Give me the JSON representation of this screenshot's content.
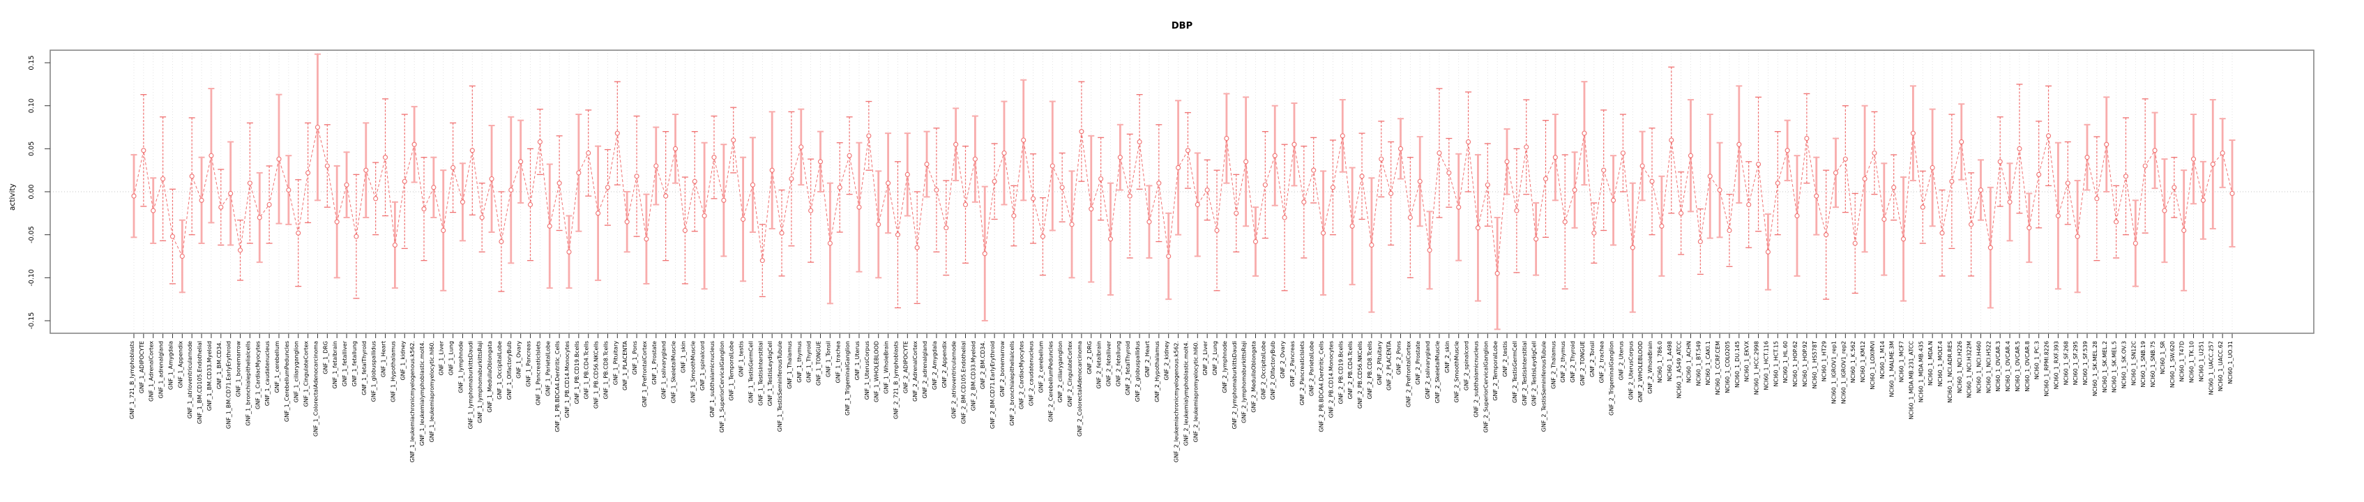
{
  "title": "DBP",
  "colors": {
    "point_line": "#f07070",
    "bar_solid_pink": "#f8acac",
    "bar_dashed_red": "#f07070",
    "marker_fill": "#ffffff",
    "grid": "#dcdcdc",
    "zero_line": "#c4c4c4",
    "axis_frame": "#878787",
    "tick": "#333333",
    "text": "#000000"
  },
  "chart_data": {
    "type": "line",
    "title": "DBP",
    "xlabel": "",
    "ylabel": "activity",
    "ylim": [
      -0.165,
      0.165
    ],
    "ytick_values": [
      0.15,
      0.1,
      0.05,
      0.0,
      -0.05,
      -0.1,
      -0.15
    ],
    "ytick_labels": [
      "0.15",
      "0.10",
      "0.05",
      "0.00",
      "-0.05",
      "-0.10",
      "-0.15"
    ],
    "grid": "dotted vertical line at every sample; dotted horizontal line at y=0",
    "legend_position": "none",
    "marker": "open-circle",
    "line_style": "dashed",
    "error_bar_note": "whiskers with end caps; style 0 = thick solid pink, style 1 = thin dashed red",
    "groups": [
      {
        "prefix": "GNF_1_",
        "items": [
          "721_B_lymphoblasts",
          "ADIPOCYTE",
          "AdrenalCortex",
          "adrenalgland",
          "Amygdala",
          "Appendix",
          "atrioventricularnode",
          "BM.CD105.Endothelial",
          "BM.CD33.Myeloid",
          "BM.CD34.",
          "BM.CD71.EarlyErythroid",
          "bonemarrow",
          "bronchialepithelialcells",
          "CardiacMyocytes",
          "caudatenucleus",
          "cerebellum",
          "CerebellumPeduncles",
          "ciliaryganglion",
          "CingulateCortex",
          "ColorectalAdenocarcinoma",
          "DRG",
          "fetalbrain",
          "fetalliver",
          "fetallung",
          "fetalThyroid",
          "globuspallidus",
          "Heart",
          "Hypothalamus",
          "kidney",
          "leukemiachronicmyelogenous.k562.",
          "leukemialymphoblastic.molt4.",
          "leukemiapromyelocytic.hl60.",
          "Liver",
          "Lung",
          "lymphnode",
          "lymphomaburkittsDaudi",
          "lymphomaburkittsRaji",
          "MedullaOblongata",
          "OccipitalLobe",
          "OlfactoryBulb",
          "Ovary",
          "Pancreas",
          "PancreaticIslets",
          "ParietalLobe",
          "PB.BDCA4.Dentritic_Cells",
          "PB.CD14.Monocytes",
          "PB.CD19.Bcells",
          "PB.CD4.Tcells",
          "PB.CD56.NKCells",
          "PB.CD8.Tcells",
          "Pituitary",
          "PLACENTA",
          "Pons",
          "PrefrontalCortex",
          "Prostate",
          "salivarygland",
          "SkeletalMuscle",
          "skin",
          "SmoothMuscle",
          "spinalcord",
          "subthalamicnucleus",
          "SuperiorCervicalGanglion",
          "TemporalLobe",
          "testis",
          "TestisGermCell",
          "TestisInterstitial",
          "TestisLeydigCell",
          "TestisSeminiferousTubule",
          "Thalamus",
          "thymus",
          "Thyroid",
          "TONGUE",
          "Tonsil",
          "trachea",
          "TrigeminalGanglion",
          "Uterus",
          "UterusCorpus",
          "WHOLEBLOOD",
          "WholeBrain"
        ]
      },
      {
        "prefix": "GNF_2_",
        "items": [
          "721_B_lymphoblasts",
          "ADIPOCYTE",
          "AdrenalCortex",
          "adrenalgland",
          "Amygdala",
          "Appendix",
          "atrioventricularnode",
          "BM.CD105.Endothelial",
          "BM.CD33.Myeloid",
          "BM.CD34.",
          "BM.CD71.EarlyErythroid",
          "bonemarrow",
          "bronchialepithelialcells",
          "CardiacMyocytes",
          "caudatenucleus",
          "cerebellum",
          "CerebellumPeduncles",
          "ciliaryganglion",
          "CingulateCortex",
          "ColorectalAdenocarcinoma",
          "DRG",
          "fetalbrain",
          "fetalliver",
          "fetallung",
          "fetalThyroid",
          "globuspallidus",
          "Heart",
          "Hypothalamus",
          "kidney",
          "leukemiachronicmyelogenous.k562.",
          "leukemialymphoblastic.molt4.",
          "leukemiapromyelocytic.hl60.",
          "Liver",
          "Lung",
          "lymphnode",
          "lymphomaburkittsDaudi",
          "lymphomaburkittsRaji",
          "MedullaOblongata",
          "OccipitalLobe",
          "OlfactoryBulb",
          "Ovary",
          "Pancreas",
          "PancreaticIslets",
          "ParietalLobe",
          "PB.BDCA4.Dentritic_Cells",
          "PB.CD14.Monocytes",
          "PB.CD19.Bcells",
          "PB.CD4.Tcells",
          "PB.CD56.NKCells",
          "PB.CD8.Tcells",
          "Pituitary",
          "PLACENTA",
          "Pons",
          "PrefrontalCortex",
          "Prostate",
          "salivarygland",
          "SkeletalMuscle",
          "skin",
          "SmoothMuscle",
          "spinalcord",
          "subthalamicnucleus",
          "SuperiorCervicalGanglion",
          "TemporalLobe",
          "testis",
          "TestisGermCell",
          "TestisInterstitial",
          "TestisLeydigCell",
          "TestisSeminiferousTubule",
          "Thalamus",
          "thymus",
          "Thyroid",
          "TONGUE",
          "Tonsil",
          "trachea",
          "TrigeminalGanglion",
          "Uterus",
          "UterusCorpus",
          "WHOLEBLOOD",
          "WholeBrain"
        ]
      },
      {
        "prefix": "NCI60_1_",
        "items": [
          "786.0",
          "A498",
          "A549_ATCC",
          "ACHN",
          "BT.549",
          "CAKI.1",
          "CCRF.CEM",
          "COLO205",
          "DU.145",
          "EKVX",
          "HCC.2998",
          "HCT.116",
          "HCT.15",
          "HL.60",
          "HOP.62",
          "HOP.92",
          "HS578T",
          "HT29",
          "IGROV1_rep1",
          "IGROV1_rep2",
          "K.562",
          "KM12",
          "LOXIMVI",
          "M14",
          "MALME.3M",
          "MCF7",
          "MDA.MB.231_ATCC",
          "MDA.MB.435",
          "MDA.N",
          "MOLT.4",
          "NCI.ADR.RES",
          "NCI.H226",
          "NCI.H322M",
          "NCI.H460",
          "NCI.H522",
          "OVCAR.3",
          "OVCAR.4",
          "OVCAR.5",
          "OVCAR.8",
          "PC.3",
          "RPMI.8226",
          "RXF.393",
          "SF.268",
          "SF.295",
          "SF.539",
          "SK.MEL.28",
          "SK.MEL.2",
          "SK.MEL.5",
          "SK.OV.3",
          "SN12C",
          "SNB.19",
          "SNB.75",
          "SR",
          "SW.620",
          "T47D",
          "TK.10",
          "U251",
          "UACC.257",
          "UACC.62",
          "UO.31"
        ]
      }
    ],
    "values": [
      -0.005,
      0.048,
      -0.022,
      0.015,
      -0.052,
      -0.075,
      0.018,
      -0.01,
      0.042,
      -0.018,
      -0.002,
      -0.068,
      0.01,
      -0.03,
      -0.015,
      0.038,
      0.002,
      -0.048,
      0.022,
      0.075,
      0.03,
      -0.035,
      0.008,
      -0.052,
      0.025,
      -0.008,
      0.04,
      -0.062,
      0.012,
      0.055,
      -0.02,
      0.005,
      -0.045,
      0.028,
      -0.012,
      0.048,
      -0.03,
      0.015,
      -0.058,
      0.002,
      0.035,
      -0.015,
      0.058,
      -0.04,
      0.01,
      -0.07,
      0.022,
      0.045,
      -0.025,
      0.005,
      0.068,
      -0.035,
      0.018,
      -0.055,
      0.03,
      -0.005,
      0.05,
      -0.045,
      0.012,
      -0.028,
      0.04,
      -0.01,
      0.06,
      -0.032,
      0.008,
      -0.08,
      0.025,
      -0.048,
      0.015,
      0.052,
      -0.022,
      0.035,
      -0.06,
      0.005,
      0.042,
      -0.018,
      0.065,
      -0.038,
      0.01,
      -0.05,
      0.02,
      -0.065,
      0.032,
      0.002,
      -0.042,
      0.055,
      -0.015,
      0.038,
      -0.072,
      0.012,
      0.045,
      -0.028,
      0.06,
      -0.008,
      -0.052,
      0.03,
      0.005,
      -0.038,
      0.07,
      -0.02,
      0.015,
      -0.055,
      0.04,
      -0.005,
      0.058,
      -0.035,
      0.01,
      -0.075,
      0.028,
      0.048,
      -0.015,
      0.002,
      -0.045,
      0.062,
      -0.025,
      0.035,
      -0.058,
      0.008,
      0.042,
      -0.03,
      0.055,
      -0.012,
      0.025,
      -0.048,
      0.005,
      0.065,
      -0.04,
      0.018,
      -0.062,
      0.038,
      -0.002,
      0.05,
      -0.03,
      0.012,
      -0.068,
      0.045,
      0.022,
      -0.018,
      0.058,
      -0.042,
      0.008,
      -0.095,
      0.035,
      -0.022,
      0.052,
      -0.055,
      0.015,
      0.04,
      -0.035,
      0.002,
      0.068,
      -0.048,
      0.025,
      -0.01,
      0.045,
      -0.065,
      0.03,
      0.012,
      -0.04,
      0.06,
      -0.025,
      0.042,
      -0.058,
      0.018,
      0.002,
      -0.045,
      0.055,
      -0.015,
      0.032,
      -0.07,
      0.01,
      0.048,
      -0.028,
      0.062,
      -0.005,
      -0.05,
      0.022,
      0.038,
      -0.06,
      0.015,
      0.045,
      -0.032,
      0.005,
      -0.055,
      0.068,
      -0.018,
      0.028,
      -0.048,
      0.012,
      0.058,
      -0.038,
      0.002,
      -0.065,
      0.035,
      -0.012,
      0.05,
      -0.042,
      0.02,
      0.065,
      -0.028,
      0.01,
      -0.052,
      0.04,
      -0.008,
      0.055,
      -0.035,
      0.018,
      -0.06,
      0.03,
      0.048,
      -0.022,
      0.005,
      -0.045,
      0.038,
      -0.01,
      0.032,
      0.045,
      -0.002
    ],
    "errors": [
      0.048,
      0.065,
      0.038,
      0.072,
      0.055,
      0.042,
      0.068,
      0.05,
      0.078,
      0.044,
      0.06,
      0.035,
      0.07,
      0.052,
      0.045,
      0.075,
      0.04,
      0.062,
      0.058,
      0.085,
      0.048,
      0.065,
      0.038,
      0.072,
      0.055,
      0.042,
      0.068,
      0.05,
      0.078,
      0.044,
      0.06,
      0.035,
      0.07,
      0.052,
      0.045,
      0.075,
      0.04,
      0.062,
      0.058,
      0.085,
      0.048,
      0.065,
      0.038,
      0.072,
      0.055,
      0.042,
      0.068,
      0.05,
      0.078,
      0.044,
      0.06,
      0.035,
      0.07,
      0.052,
      0.045,
      0.075,
      0.04,
      0.062,
      0.058,
      0.085,
      0.048,
      0.065,
      0.038,
      0.072,
      0.055,
      0.042,
      0.068,
      0.05,
      0.078,
      0.044,
      0.06,
      0.035,
      0.07,
      0.052,
      0.045,
      0.075,
      0.04,
      0.062,
      0.058,
      0.085,
      0.048,
      0.065,
      0.038,
      0.072,
      0.055,
      0.042,
      0.068,
      0.05,
      0.078,
      0.044,
      0.06,
      0.035,
      0.07,
      0.052,
      0.045,
      0.075,
      0.04,
      0.062,
      0.058,
      0.085,
      0.048,
      0.065,
      0.038,
      0.072,
      0.055,
      0.042,
      0.068,
      0.05,
      0.078,
      0.044,
      0.06,
      0.035,
      0.07,
      0.052,
      0.045,
      0.075,
      0.04,
      0.062,
      0.058,
      0.085,
      0.048,
      0.065,
      0.038,
      0.072,
      0.055,
      0.042,
      0.068,
      0.05,
      0.078,
      0.044,
      0.06,
      0.035,
      0.07,
      0.052,
      0.045,
      0.075,
      0.04,
      0.062,
      0.058,
      0.085,
      0.048,
      0.065,
      0.038,
      0.072,
      0.055,
      0.042,
      0.068,
      0.05,
      0.078,
      0.044,
      0.06,
      0.035,
      0.07,
      0.052,
      0.045,
      0.075,
      0.04,
      0.062,
      0.058,
      0.085,
      0.048,
      0.065,
      0.038,
      0.072,
      0.055,
      0.042,
      0.068,
      0.05,
      0.078,
      0.044,
      0.06,
      0.035,
      0.07,
      0.052,
      0.045,
      0.075,
      0.04,
      0.062,
      0.058,
      0.085,
      0.048,
      0.065,
      0.038,
      0.072,
      0.055,
      0.042,
      0.068,
      0.05,
      0.078,
      0.044,
      0.06,
      0.035,
      0.07,
      0.052,
      0.045,
      0.075,
      0.04,
      0.062,
      0.058,
      0.085,
      0.048,
      0.065,
      0.038,
      0.072,
      0.055,
      0.042,
      0.068,
      0.05,
      0.078,
      0.044,
      0.06,
      0.035,
      0.07,
      0.052,
      0.045,
      0.075,
      0.04,
      0.062
    ],
    "bar_styles": "01011010010110100110100101101010010110100110100101101001011010100101101001101001010110100101011010101001101001011010010101101001011010011010100110101001101001011010010110100101011010100101101001010110100101101001"
  }
}
